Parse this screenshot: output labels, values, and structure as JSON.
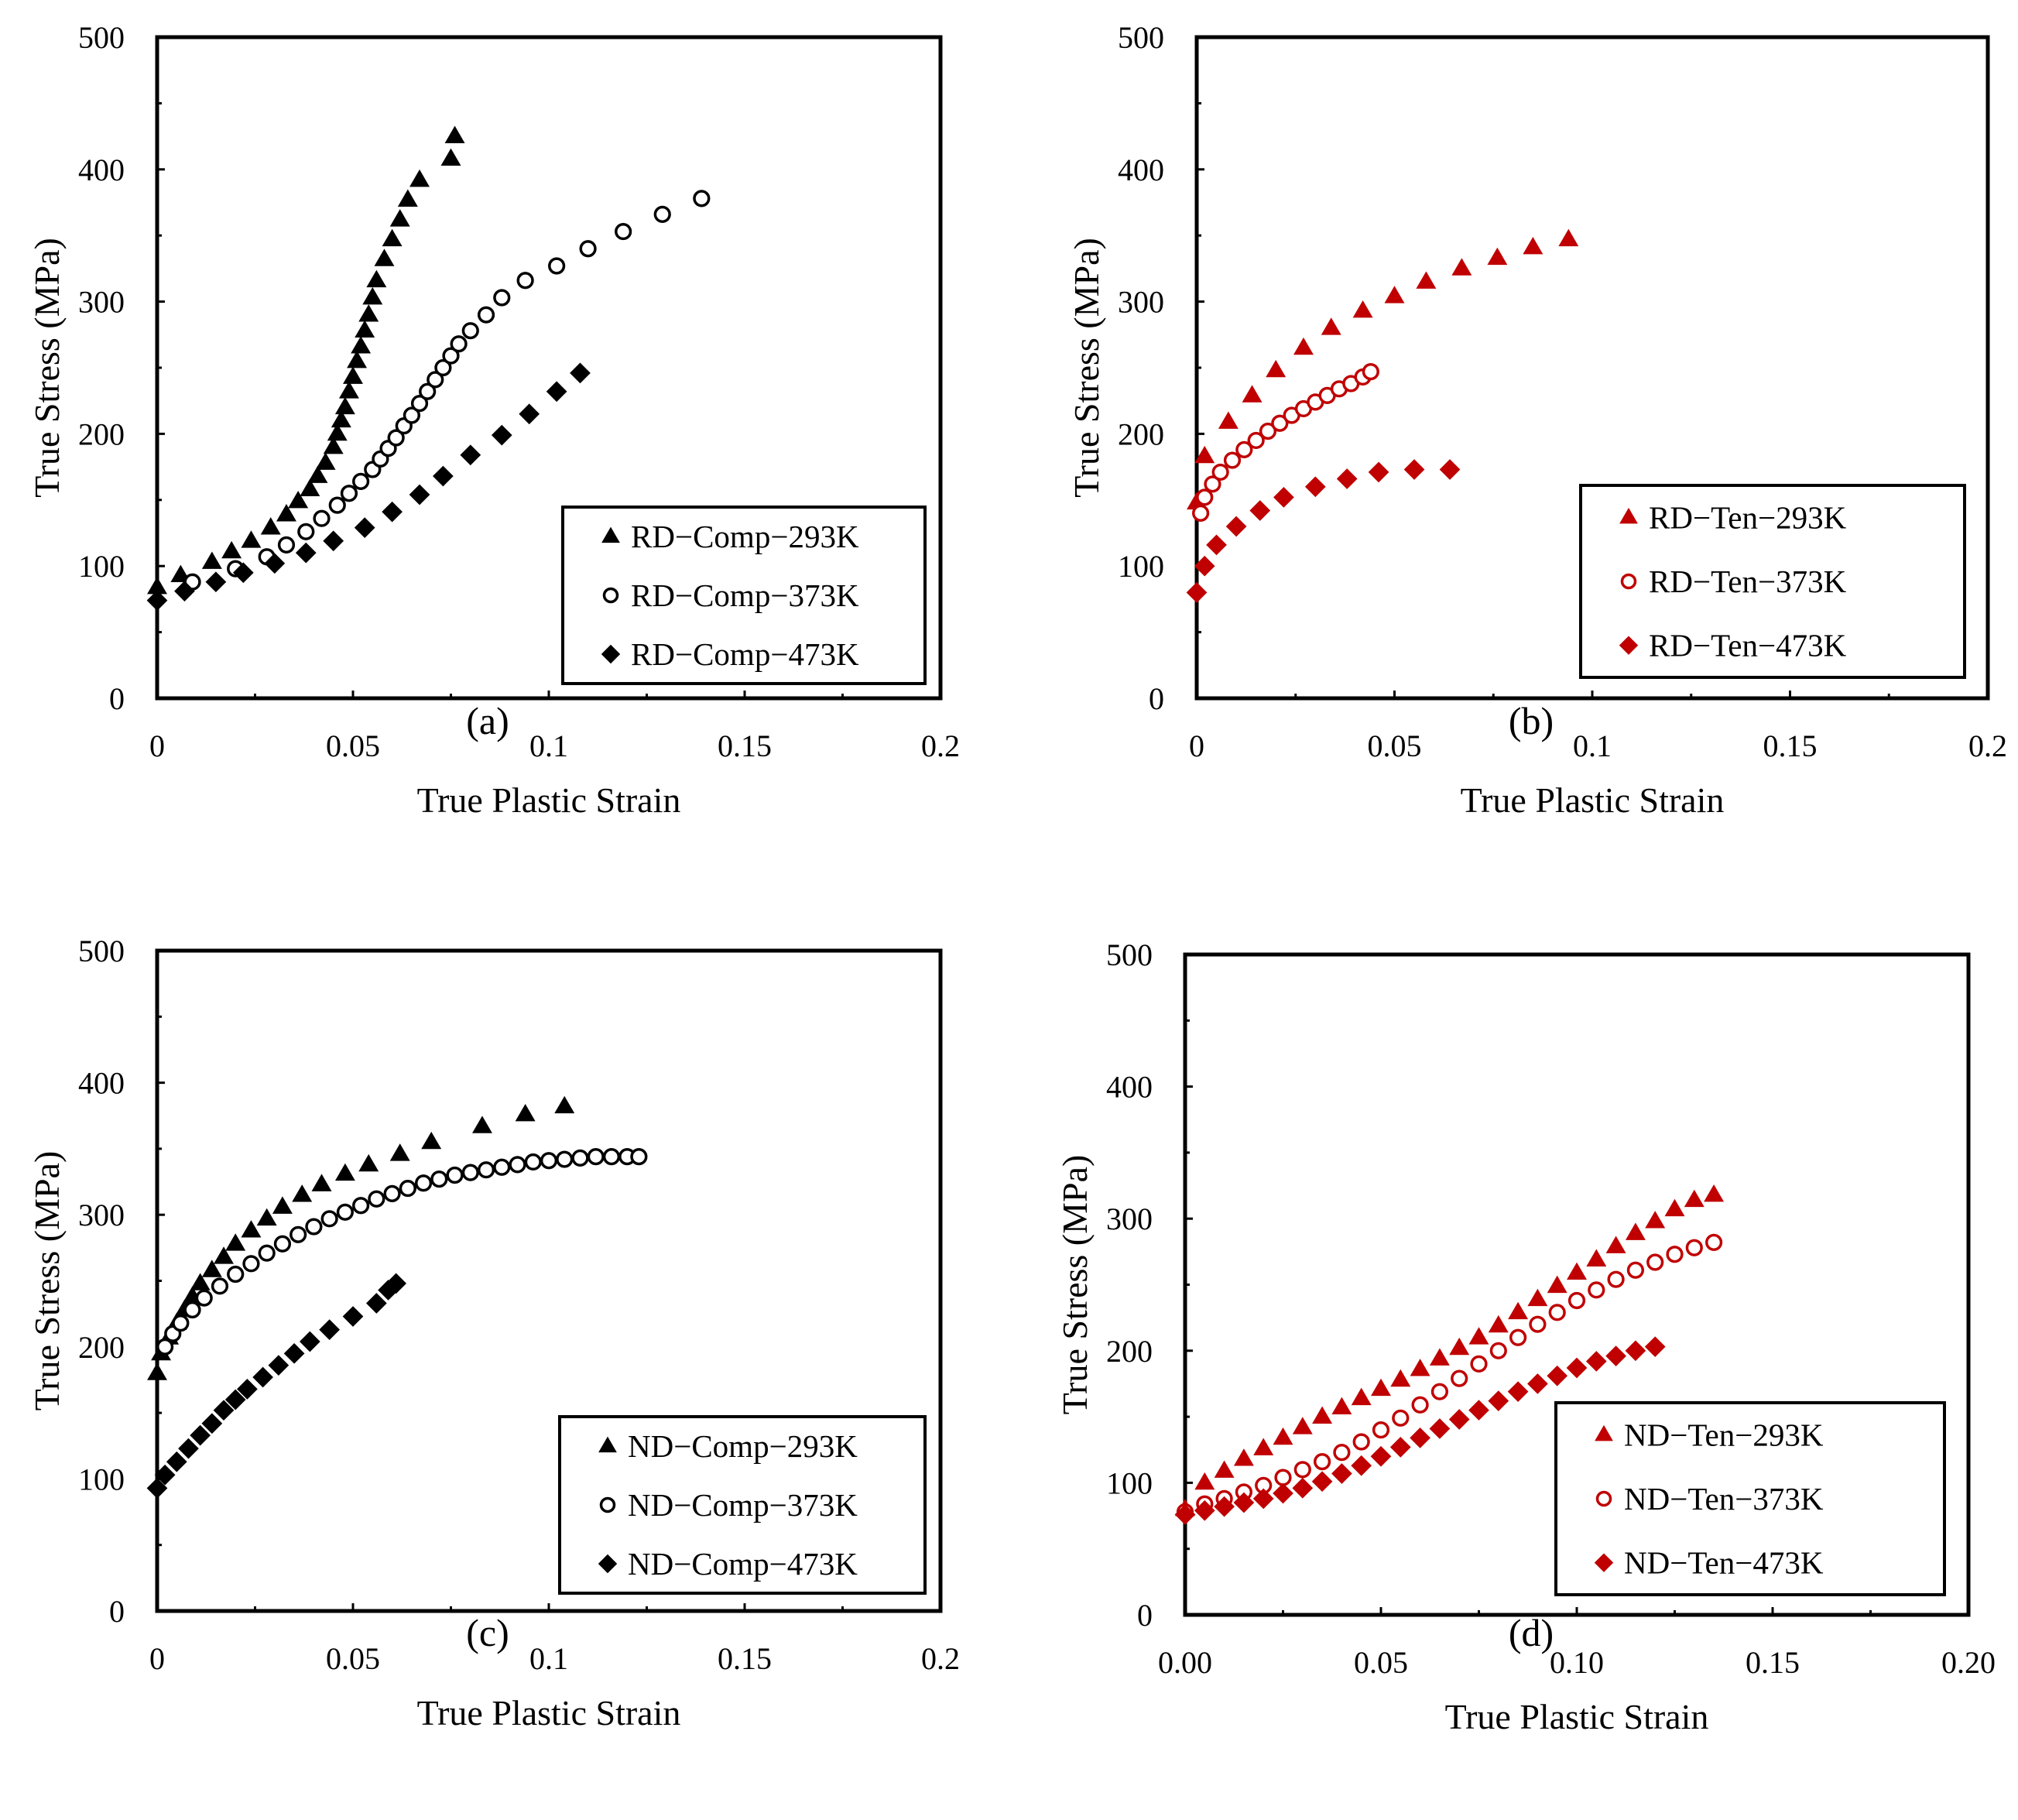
{
  "chart_data": [
    {
      "type": "scatter",
      "panel_label": "(a)",
      "xlabel": "True Plastic Strain",
      "ylabel": "True Stress (MPa)",
      "xlim": [
        0,
        0.2
      ],
      "ylim": [
        0,
        500
      ],
      "xticks": [
        "0",
        "0.05",
        "0.1",
        "0.15",
        "0.2"
      ],
      "yticks": [
        "0",
        "100",
        "200",
        "300",
        "400",
        "500"
      ],
      "legend_position": "bottom-right",
      "color": "#000000",
      "series": [
        {
          "name": "RD−Comp−293K",
          "marker": "triangle",
          "fill": "filled",
          "x": [
            0,
            0.006,
            0.014,
            0.019,
            0.024,
            0.029,
            0.033,
            0.036,
            0.039,
            0.041,
            0.043,
            0.045,
            0.046,
            0.047,
            0.048,
            0.049,
            0.05,
            0.051,
            0.052,
            0.053,
            0.054,
            0.055,
            0.056,
            0.058,
            0.06,
            0.062,
            0.064,
            0.067,
            0.075,
            0.076
          ],
          "y": [
            84,
            93,
            103,
            111,
            119,
            129,
            139,
            149,
            158,
            168,
            178,
            190,
            200,
            210,
            220,
            232,
            243,
            255,
            266,
            278,
            290,
            303,
            316,
            332,
            347,
            362,
            377,
            392,
            408,
            425
          ]
        },
        {
          "name": "RD−Comp−373K",
          "marker": "circle",
          "fill": "open",
          "x": [
            0.009,
            0.02,
            0.028,
            0.033,
            0.038,
            0.042,
            0.046,
            0.049,
            0.052,
            0.055,
            0.057,
            0.059,
            0.061,
            0.063,
            0.065,
            0.067,
            0.069,
            0.071,
            0.073,
            0.075,
            0.077,
            0.08,
            0.084,
            0.088,
            0.094,
            0.102,
            0.11,
            0.119,
            0.129,
            0.139
          ],
          "y": [
            88,
            98,
            107,
            116,
            126,
            136,
            146,
            155,
            164,
            173,
            181,
            189,
            197,
            206,
            214,
            223,
            232,
            241,
            250,
            259,
            268,
            278,
            290,
            303,
            316,
            327,
            340,
            353,
            366,
            378
          ]
        },
        {
          "name": "RD−Comp−473K",
          "marker": "diamond",
          "fill": "filled",
          "x": [
            0,
            0.007,
            0.015,
            0.022,
            0.03,
            0.038,
            0.045,
            0.053,
            0.06,
            0.067,
            0.073,
            0.08,
            0.088,
            0.095,
            0.102,
            0.108
          ],
          "y": [
            74,
            81,
            88,
            95,
            102,
            110,
            119,
            129,
            141,
            154,
            168,
            184,
            199,
            215,
            232,
            246
          ]
        }
      ]
    },
    {
      "type": "scatter",
      "panel_label": "(b)",
      "xlabel": "True Plastic Strain",
      "ylabel": "True Stress (MPa)",
      "xlim": [
        0,
        0.2
      ],
      "ylim": [
        0,
        500
      ],
      "xticks": [
        "0",
        "0.05",
        "0.1",
        "0.15",
        "0.2"
      ],
      "yticks": [
        "0",
        "100",
        "200",
        "300",
        "400",
        "500"
      ],
      "legend_position": "bottom-right",
      "color": "#c00000",
      "series": [
        {
          "name": "RD−Ten−293K",
          "marker": "triangle",
          "fill": "filled",
          "x": [
            0,
            0.002,
            0.008,
            0.014,
            0.02,
            0.027,
            0.034,
            0.042,
            0.05,
            0.058,
            0.067,
            0.076,
            0.085,
            0.094
          ],
          "y": [
            148,
            183,
            209,
            229,
            248,
            265,
            280,
            293,
            304,
            315,
            325,
            333,
            341,
            347
          ]
        },
        {
          "name": "RD−Ten−373K",
          "marker": "circle",
          "fill": "open",
          "x": [
            0.001,
            0.002,
            0.004,
            0.006,
            0.009,
            0.012,
            0.015,
            0.018,
            0.021,
            0.024,
            0.027,
            0.03,
            0.033,
            0.036,
            0.039,
            0.042,
            0.044
          ],
          "y": [
            140,
            152,
            162,
            171,
            180,
            188,
            195,
            202,
            208,
            214,
            219,
            224,
            229,
            234,
            238,
            243,
            247
          ]
        },
        {
          "name": "RD−Ten−473K",
          "marker": "diamond",
          "fill": "filled",
          "x": [
            0,
            0.002,
            0.005,
            0.01,
            0.016,
            0.022,
            0.03,
            0.038,
            0.046,
            0.055,
            0.064
          ],
          "y": [
            80,
            100,
            116,
            130,
            142,
            152,
            160,
            166,
            171,
            173,
            173
          ]
        }
      ]
    },
    {
      "type": "scatter",
      "panel_label": "(c)",
      "xlabel": "True Plastic Strain",
      "ylabel": "True Stress (MPa)",
      "xlim": [
        0,
        0.2
      ],
      "ylim": [
        0,
        500
      ],
      "xticks": [
        "0",
        "0.05",
        "0.1",
        "0.15",
        "0.2"
      ],
      "yticks": [
        "0",
        "100",
        "200",
        "300",
        "400",
        "500"
      ],
      "legend_position": "bottom-right",
      "color": "#000000",
      "series": [
        {
          "name": "ND−Comp−293K",
          "marker": "triangle",
          "fill": "filled",
          "x": [
            0,
            0.001,
            0.003,
            0.005,
            0.007,
            0.009,
            0.011,
            0.014,
            0.017,
            0.02,
            0.024,
            0.028,
            0.032,
            0.037,
            0.042,
            0.048,
            0.054,
            0.062,
            0.07,
            0.083,
            0.094,
            0.104
          ],
          "y": [
            180,
            195,
            207,
            218,
            228,
            238,
            248,
            258,
            268,
            278,
            288,
            297,
            306,
            315,
            323,
            331,
            338,
            346,
            355,
            367,
            376,
            382
          ]
        },
        {
          "name": "ND−Comp−373K",
          "marker": "circle",
          "fill": "open",
          "x": [
            0.002,
            0.004,
            0.006,
            0.009,
            0.012,
            0.016,
            0.02,
            0.024,
            0.028,
            0.032,
            0.036,
            0.04,
            0.044,
            0.048,
            0.052,
            0.056,
            0.06,
            0.064,
            0.068,
            0.072,
            0.076,
            0.08,
            0.084,
            0.088,
            0.092,
            0.096,
            0.1,
            0.104,
            0.108,
            0.112,
            0.116,
            0.12,
            0.123
          ],
          "y": [
            200,
            210,
            218,
            228,
            237,
            246,
            255,
            263,
            271,
            278,
            285,
            291,
            297,
            302,
            307,
            312,
            316,
            320,
            324,
            327,
            330,
            332,
            334,
            336,
            338,
            340,
            341,
            342,
            343,
            344,
            344,
            344,
            344
          ]
        },
        {
          "name": "ND−Comp−473K",
          "marker": "diamond",
          "fill": "filled",
          "x": [
            0,
            0.002,
            0.005,
            0.008,
            0.011,
            0.014,
            0.017,
            0.02,
            0.023,
            0.027,
            0.031,
            0.035,
            0.039,
            0.044,
            0.05,
            0.056,
            0.059,
            0.061
          ],
          "y": [
            93,
            103,
            113,
            123,
            133,
            142,
            152,
            160,
            168,
            177,
            186,
            195,
            204,
            213,
            223,
            233,
            243,
            248
          ]
        }
      ]
    },
    {
      "type": "scatter",
      "panel_label": "(d)",
      "xlabel": "True Plastic Strain",
      "ylabel": "True Stress (MPa)",
      "xlim": [
        0,
        0.2
      ],
      "ylim": [
        0,
        500
      ],
      "xticks": [
        "0.00",
        "0.05",
        "0.10",
        "0.15",
        "0.20"
      ],
      "yticks": [
        "0",
        "100",
        "200",
        "300",
        "400",
        "500"
      ],
      "legend_position": "bottom-right",
      "color": "#c00000",
      "series": [
        {
          "name": "ND−Ten−293K",
          "marker": "triangle",
          "fill": "filled",
          "x": [
            0,
            0.005,
            0.01,
            0.015,
            0.02,
            0.025,
            0.03,
            0.035,
            0.04,
            0.045,
            0.05,
            0.055,
            0.06,
            0.065,
            0.07,
            0.075,
            0.08,
            0.085,
            0.09,
            0.095,
            0.1,
            0.105,
            0.11,
            0.115,
            0.12,
            0.125,
            0.13,
            0.135
          ],
          "y": [
            80,
            100,
            109,
            118,
            126,
            134,
            142,
            150,
            157,
            164,
            171,
            178,
            186,
            194,
            202,
            210,
            219,
            229,
            239,
            249,
            259,
            269,
            279,
            289,
            298,
            307,
            314,
            318
          ]
        },
        {
          "name": "ND−Ten−373K",
          "marker": "circle",
          "fill": "open",
          "x": [
            0,
            0.005,
            0.01,
            0.015,
            0.02,
            0.025,
            0.03,
            0.035,
            0.04,
            0.045,
            0.05,
            0.055,
            0.06,
            0.065,
            0.07,
            0.075,
            0.08,
            0.085,
            0.09,
            0.095,
            0.1,
            0.105,
            0.11,
            0.115,
            0.12,
            0.125,
            0.13,
            0.135
          ],
          "y": [
            78,
            84,
            88,
            93,
            98,
            104,
            110,
            116,
            123,
            131,
            140,
            149,
            159,
            169,
            179,
            190,
            200,
            210,
            220,
            229,
            238,
            246,
            254,
            261,
            267,
            273,
            278,
            282
          ]
        },
        {
          "name": "ND−Ten−473K",
          "marker": "diamond",
          "fill": "filled",
          "x": [
            0,
            0.005,
            0.01,
            0.015,
            0.02,
            0.025,
            0.03,
            0.035,
            0.04,
            0.045,
            0.05,
            0.055,
            0.06,
            0.065,
            0.07,
            0.075,
            0.08,
            0.085,
            0.09,
            0.095,
            0.1,
            0.105,
            0.11,
            0.115,
            0.12
          ],
          "y": [
            76,
            79,
            82,
            85,
            88,
            92,
            96,
            101,
            107,
            113,
            120,
            127,
            134,
            141,
            148,
            155,
            162,
            169,
            175,
            181,
            187,
            192,
            196,
            200,
            203
          ]
        }
      ]
    }
  ]
}
